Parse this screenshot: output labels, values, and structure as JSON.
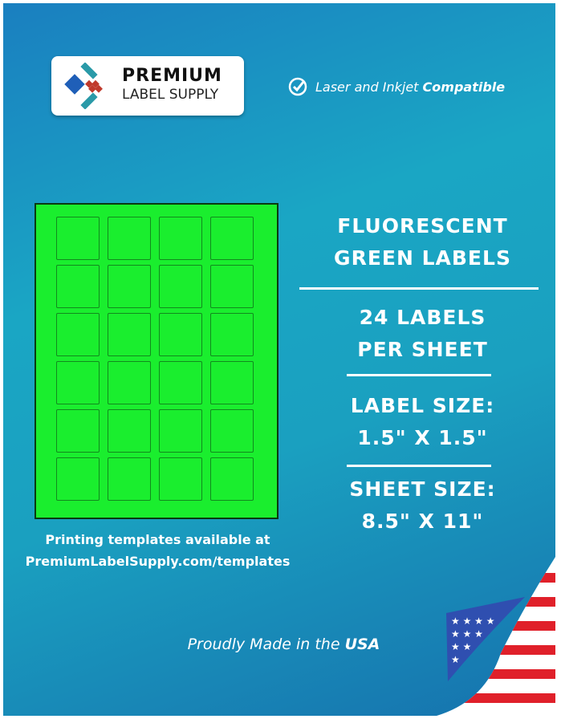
{
  "brand": {
    "line1": "PREMIUM",
    "line2": "LABEL SUPPLY"
  },
  "compat": {
    "prefix": "Laser and Inkjet ",
    "bold": "Compatible",
    "icon": "check-circle-icon"
  },
  "product": {
    "title1": "FLUORESCENT",
    "title2": "GREEN LABELS",
    "count1": "24 LABELS",
    "count2": "PER SHEET",
    "label_size_label": "LABEL SIZE:",
    "label_size": "1.5\" X 1.5\"",
    "sheet_size_label": "SHEET SIZE:",
    "sheet_size": "8.5\" X 11\""
  },
  "sheet": {
    "rows": 6,
    "cols": 4,
    "color": "#1aee2e"
  },
  "templates": {
    "line1": "Printing templates available at",
    "line2": "PremiumLabelSupply.com/templates"
  },
  "footer": {
    "prefix": "Proudly Made in the ",
    "bold": "USA"
  }
}
